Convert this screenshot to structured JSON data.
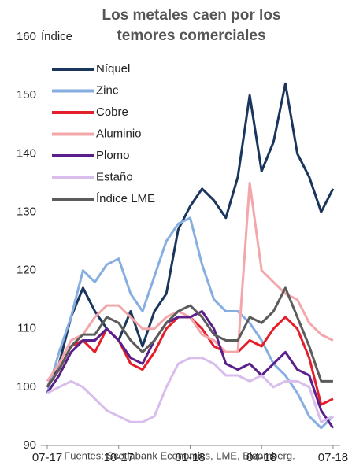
{
  "chart_data": {
    "type": "line",
    "title": [
      "Los metales caen por los",
      "temores comerciales"
    ],
    "y_label": "Índice",
    "source": "Fuentes: Scotiabank Economics, LME, Bloomberg.",
    "x": [
      0,
      0.5,
      1,
      1.5,
      2,
      2.5,
      3,
      3.5,
      4,
      4.5,
      5,
      5.5,
      6,
      6.5,
      7,
      7.5,
      8,
      8.5,
      9,
      9.5,
      10,
      10.5,
      11,
      11.5,
      12
    ],
    "xlim": [
      0,
      12.3
    ],
    "xticks": [
      {
        "value": 0,
        "label": "07-17"
      },
      {
        "value": 3,
        "label": "10-17"
      },
      {
        "value": 6,
        "label": "01-18"
      },
      {
        "value": 9,
        "label": "04-18"
      },
      {
        "value": 12,
        "label": "07-18"
      }
    ],
    "ylim": [
      90,
      160
    ],
    "yticks": [
      90,
      100,
      110,
      120,
      130,
      140,
      150,
      160
    ],
    "series": [
      {
        "name": "Níquel",
        "color": "#1b365d",
        "values": [
          100,
          104,
          112,
          117,
          113,
          110,
          108,
          113,
          107,
          113,
          116,
          127,
          131,
          134,
          132,
          129,
          136,
          150,
          137,
          142,
          152,
          140,
          136,
          130,
          134
        ]
      },
      {
        "name": "Zinc",
        "color": "#86aee0",
        "values": [
          99,
          106,
          112,
          120,
          118,
          121,
          122,
          116,
          113,
          119,
          125,
          128,
          129,
          121,
          115,
          113,
          113,
          111,
          108,
          104,
          102,
          99,
          95,
          93,
          95
        ]
      },
      {
        "name": "Cobre",
        "color": "#e41f2b",
        "values": [
          100,
          103,
          107,
          108,
          106,
          110,
          108,
          104,
          103,
          106,
          110,
          112,
          112,
          110,
          107,
          106,
          106,
          108,
          107,
          110,
          112,
          110,
          105,
          97,
          98
        ]
      },
      {
        "name": "Aluminio",
        "color": "#f4a7aa",
        "values": [
          101,
          104,
          108,
          109,
          112,
          114,
          114,
          112,
          110,
          110,
          112,
          113,
          112,
          109,
          108,
          106,
          106,
          135,
          120,
          118,
          116,
          115,
          111,
          109,
          108
        ]
      },
      {
        "name": "Plomo",
        "color": "#5a1f8a",
        "values": [
          99,
          102,
          106,
          108,
          108,
          110,
          108,
          105,
          104,
          108,
          111,
          112,
          112,
          113,
          110,
          104,
          103,
          104,
          102,
          104,
          106,
          103,
          102,
          96,
          93
        ]
      },
      {
        "name": "Estaño",
        "color": "#d9bdec",
        "values": [
          99,
          100,
          101,
          100,
          98,
          96,
          95,
          94,
          94,
          95,
          100,
          104,
          105,
          105,
          104,
          102,
          102,
          101,
          102,
          100,
          101,
          101,
          100,
          94,
          95
        ]
      },
      {
        "name": "Índice LME",
        "color": "#5c5c5c",
        "values": [
          100,
          103,
          107,
          109,
          109,
          112,
          111,
          108,
          106,
          108,
          111,
          113,
          114,
          112,
          109,
          108,
          108,
          112,
          111,
          113,
          117,
          112,
          107,
          101,
          101
        ]
      }
    ]
  }
}
